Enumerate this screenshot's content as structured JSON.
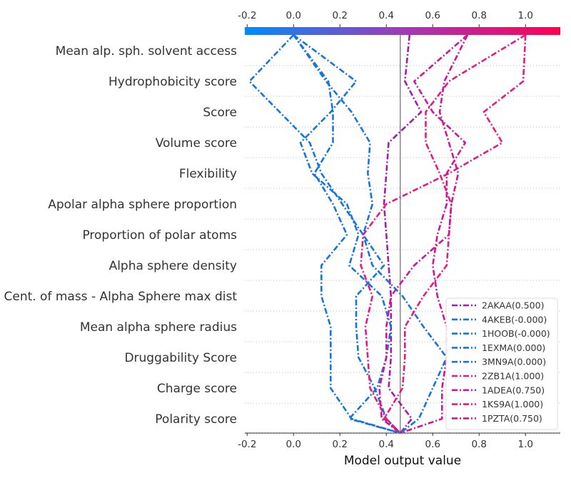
{
  "chart_data": {
    "type": "line",
    "xlabel": "Model output value",
    "xlim": [
      -0.21,
      1.15
    ],
    "base_value": 0.46,
    "xticks": [
      -0.2,
      0.0,
      0.2,
      0.4,
      0.6,
      0.8,
      1.0
    ],
    "xtick_labels": [
      "-0.2",
      "0.0",
      "0.2",
      "0.4",
      "0.6",
      "0.8",
      "1.0"
    ],
    "colormap": {
      "low": "#008bfb",
      "mid": "#a03ab8",
      "high": "#ff0052"
    },
    "features": [
      "Mean alp. sph. solvent access",
      "Hydrophobicity score",
      "Score",
      "Volume score",
      "Flexibility",
      "Apolar alpha sphere proportion",
      "Proportion of polar atoms",
      "Alpha sphere density",
      "Cent. of mass - Alpha Sphere max dist",
      "Mean alpha sphere radius",
      "Druggability Score",
      "Charge score",
      "Polarity score"
    ],
    "legend_position": "lower-right",
    "series": [
      {
        "name": "2AKAA(0.500)",
        "color": "#a21caf",
        "path": [
          0.5,
          0.48,
          0.55,
          0.41,
          0.4,
          0.39,
          0.4,
          0.41,
          0.42,
          0.42,
          0.42,
          0.41,
          0.51,
          0.46
        ]
      },
      {
        "name": "4AKEB(-0.000)",
        "color": "#1475e1",
        "path": [
          0.0,
          0.27,
          0.16,
          0.03,
          0.08,
          0.23,
          0.28,
          0.24,
          0.38,
          0.42,
          0.4,
          0.36,
          0.24,
          0.46
        ]
      },
      {
        "name": "1HOOB(-0.000)",
        "color": "#1475e1",
        "path": [
          0.0,
          -0.19,
          -0.06,
          0.07,
          0.12,
          0.21,
          0.3,
          0.34,
          0.47,
          0.56,
          0.66,
          0.6,
          0.54,
          0.46
        ]
      },
      {
        "name": "1EXMA(0.000)",
        "color": "#1475e1",
        "path": [
          0.0,
          0.15,
          0.17,
          0.17,
          0.09,
          0.17,
          0.23,
          0.12,
          0.12,
          0.16,
          0.16,
          0.16,
          0.25,
          0.46
        ]
      },
      {
        "name": "3MN9A(0.000)",
        "color": "#1475e1",
        "path": [
          0.0,
          0.14,
          0.25,
          0.33,
          0.32,
          0.34,
          0.3,
          0.39,
          0.27,
          0.27,
          0.28,
          0.35,
          0.4,
          0.46
        ]
      },
      {
        "name": "2ZB1A(1.000)",
        "color": "#e8197f",
        "path": [
          1.0,
          0.99,
          0.82,
          0.9,
          0.67,
          0.4,
          0.3,
          0.29,
          0.34,
          0.31,
          0.32,
          0.33,
          0.4,
          0.46
        ]
      },
      {
        "name": "1ADEA(0.750)",
        "color": "#cf1697",
        "path": [
          0.75,
          0.52,
          0.6,
          0.74,
          0.66,
          0.66,
          0.62,
          0.6,
          0.62,
          0.66,
          0.66,
          0.64,
          0.64,
          0.46
        ]
      },
      {
        "name": "1KS9A(1.000)",
        "color": "#e8197f",
        "path": [
          1.0,
          0.67,
          0.57,
          0.57,
          0.63,
          0.68,
          0.67,
          0.66,
          0.56,
          0.48,
          0.48,
          0.47,
          0.39,
          0.46
        ]
      },
      {
        "name": "1PZTA(0.750)",
        "color": "#cf1697",
        "path": [
          0.75,
          0.65,
          0.63,
          0.67,
          0.71,
          0.68,
          0.67,
          0.52,
          0.42,
          0.4,
          0.4,
          0.37,
          0.38,
          0.46
        ]
      }
    ]
  }
}
